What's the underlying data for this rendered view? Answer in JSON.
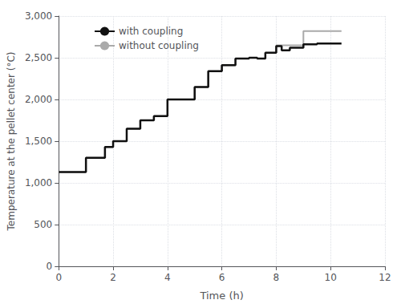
{
  "chart_data": {
    "type": "line",
    "title": "",
    "xlabel": "Time (h)",
    "ylabel": "Temperature at the pellet center (°C)",
    "xlim": [
      0,
      12
    ],
    "ylim": [
      0,
      3000
    ],
    "xticks": [
      0,
      2,
      4,
      6,
      8,
      10,
      12
    ],
    "yticks": [
      0,
      500,
      1000,
      1500,
      2000,
      2500,
      3000
    ],
    "grid": true,
    "legend": "upper left",
    "series": [
      {
        "name": "without coupling",
        "color": "#aaaaaa",
        "x": [
          0.0,
          1.0,
          1.0,
          1.7,
          1.7,
          2.0,
          2.0,
          2.5,
          2.5,
          3.0,
          3.0,
          3.5,
          3.5,
          4.0,
          4.0,
          5.0,
          5.0,
          5.5,
          5.5,
          6.0,
          6.0,
          6.5,
          6.5,
          7.0,
          7.0,
          7.3,
          7.3,
          7.6,
          7.6,
          8.0,
          8.0,
          8.5,
          8.5,
          9.0,
          9.0,
          9.5,
          9.5,
          10.0,
          10.0,
          10.4
        ],
        "values": [
          1130,
          1130,
          1300,
          1300,
          1430,
          1430,
          1500,
          1500,
          1650,
          1650,
          1750,
          1750,
          1800,
          1800,
          2000,
          2000,
          2150,
          2150,
          2340,
          2340,
          2410,
          2410,
          2490,
          2490,
          2500,
          2500,
          2490,
          2490,
          2560,
          2560,
          2650,
          2650,
          2650,
          2650,
          2820,
          2820,
          2820,
          2820,
          2820,
          2820
        ]
      },
      {
        "name": "with coupling",
        "color": "#111111",
        "x": [
          0.0,
          1.0,
          1.0,
          1.7,
          1.7,
          2.0,
          2.0,
          2.5,
          2.5,
          3.0,
          3.0,
          3.5,
          3.5,
          4.0,
          4.0,
          5.0,
          5.0,
          5.5,
          5.5,
          6.0,
          6.0,
          6.5,
          6.5,
          7.0,
          7.0,
          7.3,
          7.3,
          7.6,
          7.6,
          8.0,
          8.0,
          8.2,
          8.2,
          8.5,
          8.5,
          9.0,
          9.0,
          9.5,
          9.5,
          10.0,
          10.0,
          10.4
        ],
        "values": [
          1130,
          1130,
          1300,
          1300,
          1430,
          1430,
          1500,
          1500,
          1650,
          1650,
          1750,
          1750,
          1800,
          1800,
          2000,
          2000,
          2150,
          2150,
          2340,
          2340,
          2410,
          2410,
          2490,
          2490,
          2500,
          2500,
          2490,
          2490,
          2560,
          2560,
          2640,
          2640,
          2590,
          2590,
          2620,
          2620,
          2660,
          2660,
          2670,
          2670,
          2670,
          2670
        ]
      }
    ]
  }
}
